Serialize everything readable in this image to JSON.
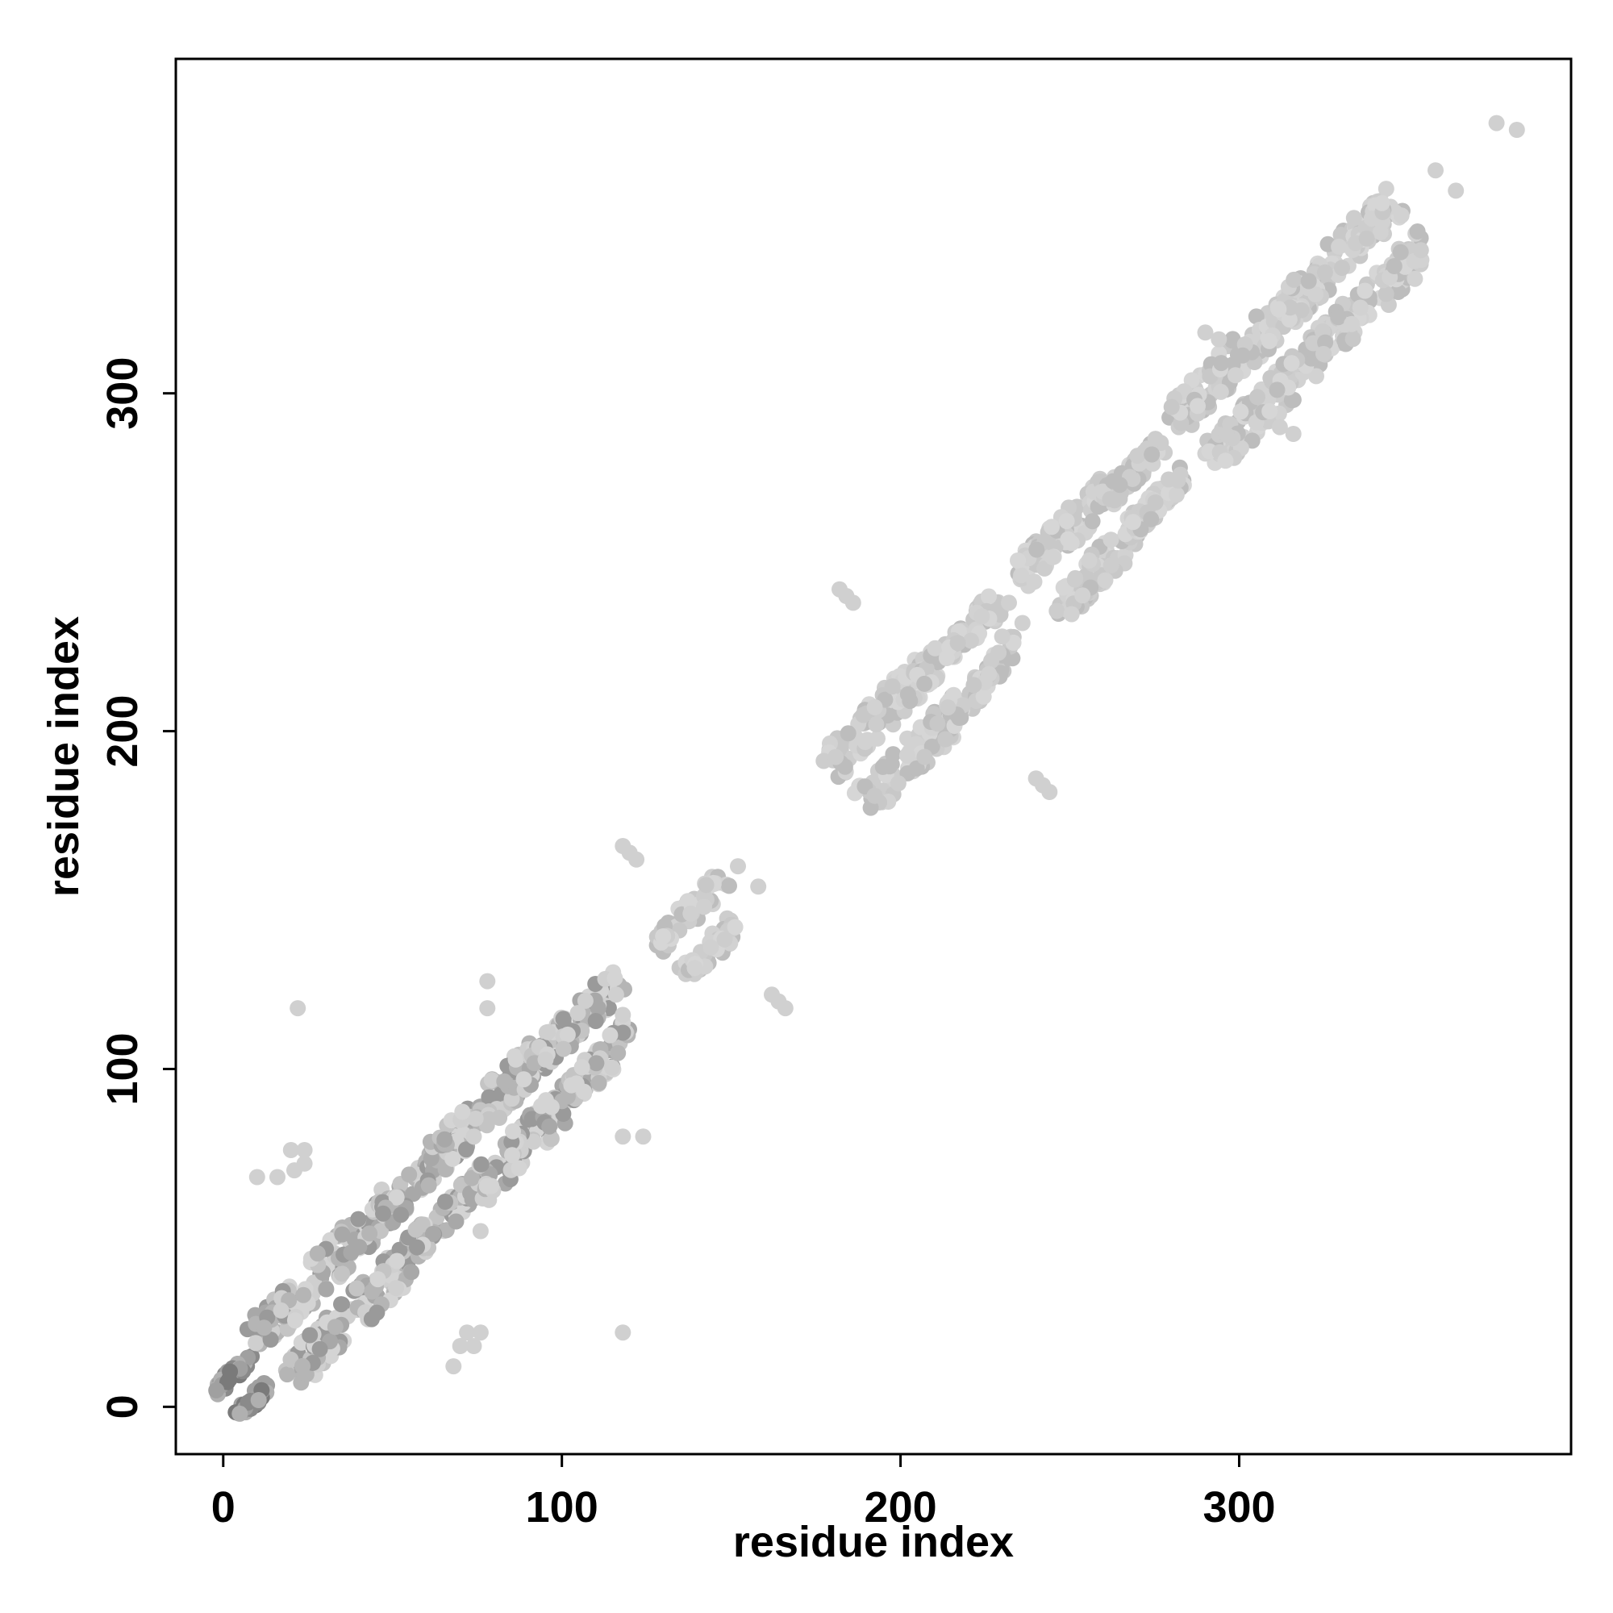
{
  "chart_data": {
    "type": "scatter",
    "title": "",
    "xlabel": "residue index",
    "ylabel": "residue index",
    "xlim": [
      -14,
      398
    ],
    "ylim": [
      -14,
      399
    ],
    "xticks": [
      0,
      100,
      200,
      300
    ],
    "yticks": [
      0,
      100,
      200,
      300
    ],
    "grid": false,
    "legend": "none",
    "point_color_scale": "grayscale; most points light gray, a few darker",
    "diagonal_gap": "no points on the main diagonal",
    "clusters": [
      {
        "x": [
          0,
          12
        ],
        "y": [
          0,
          12
        ],
        "shade": "dark"
      },
      {
        "x": [
          14,
          56
        ],
        "y": [
          14,
          56
        ],
        "shade": "medium"
      },
      {
        "x": [
          52,
          72
        ],
        "y": [
          52,
          76
        ],
        "shade": "medium"
      },
      {
        "x": [
          68,
          100
        ],
        "y": [
          68,
          100
        ],
        "shade": "medium"
      },
      {
        "x": [
          96,
          118
        ],
        "y": [
          98,
          122
        ],
        "shade": "medium"
      },
      {
        "x": [
          134,
          152
        ],
        "y": [
          132,
          152
        ],
        "shade": "light"
      },
      {
        "x": [
          184,
          214
        ],
        "y": [
          186,
          214
        ],
        "shade": "light"
      },
      {
        "x": [
          210,
          232
        ],
        "y": [
          210,
          234
        ],
        "shade": "light"
      },
      {
        "x": [
          248,
          268
        ],
        "y": [
          240,
          268
        ],
        "shade": "light"
      },
      {
        "x": [
          264,
          282
        ],
        "y": [
          266,
          282
        ],
        "shade": "light"
      },
      {
        "x": [
          286,
          324
        ],
        "y": [
          286,
          326
        ],
        "shade": "light"
      },
      {
        "x": [
          318,
          352
        ],
        "y": [
          318,
          352
        ],
        "shade": "light"
      }
    ],
    "off_diagonal_points": [
      [
        22,
        118
      ],
      [
        10,
        68
      ],
      [
        16,
        68
      ],
      [
        20,
        76
      ],
      [
        24,
        76
      ],
      [
        21,
        70
      ],
      [
        24,
        72
      ],
      [
        68,
        12
      ],
      [
        70,
        18
      ],
      [
        72,
        22
      ],
      [
        74,
        18
      ],
      [
        76,
        22
      ],
      [
        76,
        52
      ],
      [
        118,
        22
      ],
      [
        118,
        80
      ],
      [
        124,
        80
      ],
      [
        118,
        116
      ],
      [
        116,
        122
      ],
      [
        78,
        118
      ],
      [
        78,
        126
      ],
      [
        74,
        80
      ],
      [
        118,
        166
      ],
      [
        120,
        164
      ],
      [
        122,
        162
      ],
      [
        162,
        122
      ],
      [
        164,
        120
      ],
      [
        166,
        118
      ],
      [
        152,
        160
      ],
      [
        158,
        154
      ],
      [
        142,
        148
      ],
      [
        144,
        136
      ],
      [
        138,
        146
      ],
      [
        182,
        242
      ],
      [
        184,
        240
      ],
      [
        186,
        238
      ],
      [
        240,
        186
      ],
      [
        242,
        184
      ],
      [
        244,
        182
      ],
      [
        224,
        234
      ],
      [
        230,
        228
      ],
      [
        232,
        238
      ],
      [
        236,
        232
      ],
      [
        290,
        318
      ],
      [
        294,
        316
      ],
      [
        312,
        290
      ],
      [
        316,
        288
      ],
      [
        358,
        366
      ],
      [
        364,
        360
      ],
      [
        376,
        380
      ],
      [
        382,
        378
      ]
    ]
  }
}
